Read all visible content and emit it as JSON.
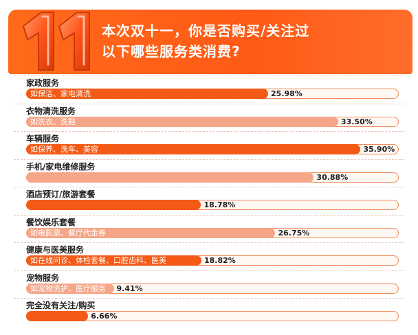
{
  "header": {
    "badge_text": "11",
    "title_line1": "本次双十一，你是否购买/关注过",
    "title_line2": "以下哪些服务类消费?"
  },
  "colors": {
    "accent_dark": "#f45a16",
    "accent_light": "#f6a688",
    "banner": "#ff5a16"
  },
  "chart_data": {
    "type": "bar",
    "orientation": "horizontal",
    "title": "本次双十一，你是否购买/关注过以下哪些服务类消费?",
    "xlim": [
      0,
      40
    ],
    "categories": [
      "家政服务",
      "衣物清洗服务",
      "车辆服务",
      "手机/家电维修服务",
      "酒店预订/旅游套餐",
      "餐饮娱乐套餐",
      "健康与医美服务",
      "宠物服务",
      "完全没有关注/购买"
    ],
    "sublabels": [
      "如保洁、家电清洗",
      "如洗衣、洗鞋",
      "如保养、洗车、美容",
      "",
      "",
      "如电影票、餐厅代金券",
      "如在线问诊、体检套餐、口腔齿科、医美",
      "如宠物洗护、医疗服务",
      ""
    ],
    "values": [
      25.98,
      33.5,
      35.9,
      30.88,
      18.78,
      26.75,
      18.82,
      9.41,
      6.66
    ],
    "value_labels": [
      "25.98%",
      "33.50%",
      "35.90%",
      "30.88%",
      "18.78%",
      "26.75%",
      "18.82%",
      "9.41%",
      "6.66%"
    ],
    "bar_tones": [
      "dark",
      "light",
      "dark",
      "light",
      "dark",
      "light",
      "dark",
      "light",
      "dark"
    ]
  }
}
